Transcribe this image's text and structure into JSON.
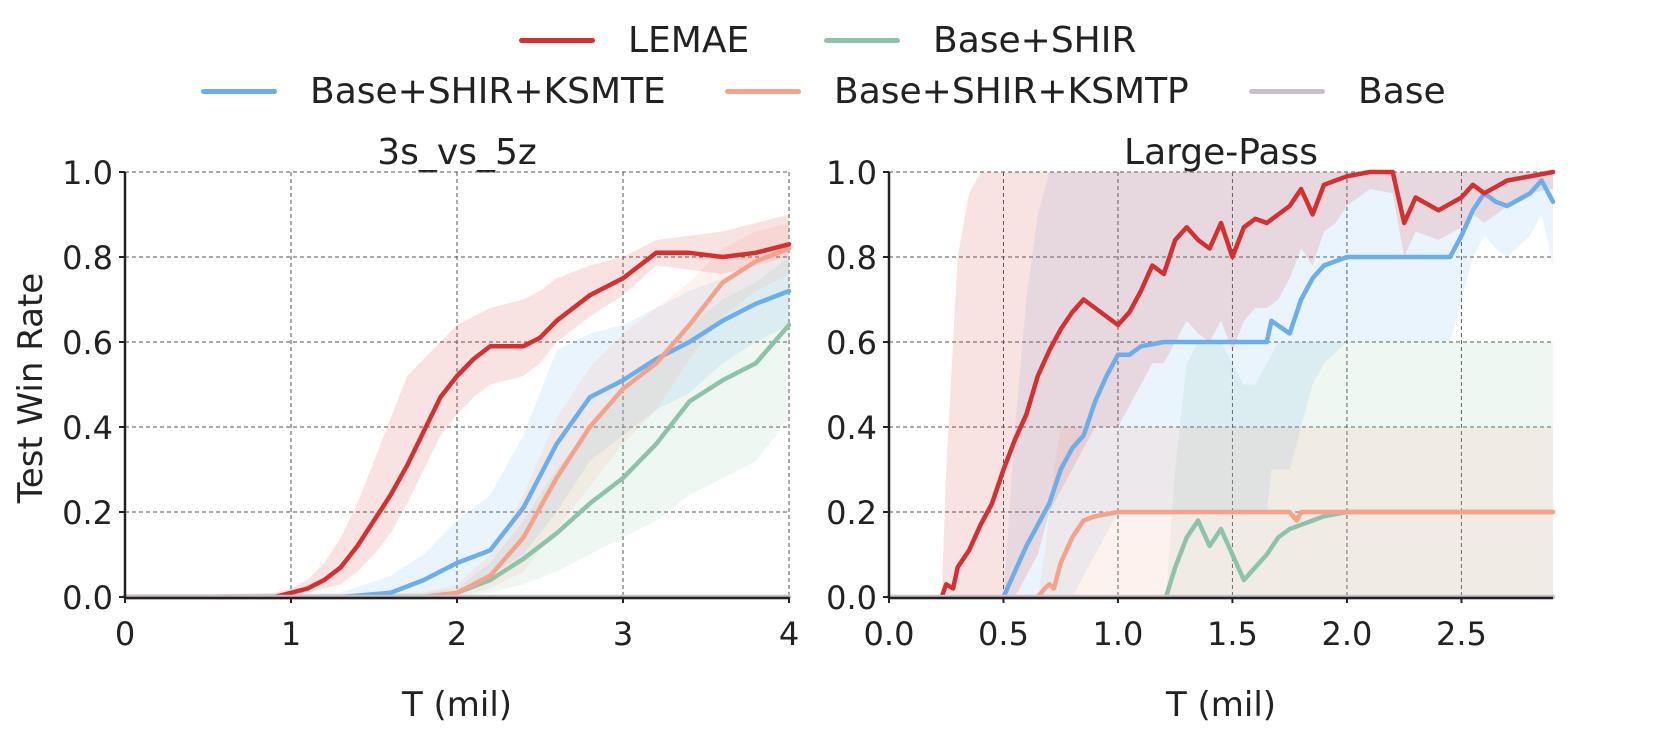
{
  "legend": {
    "items": [
      {
        "label": "LEMAE",
        "color": "#d62f2f"
      },
      {
        "label": "Base+SHIR",
        "color": "#8dc4a9"
      },
      {
        "label": "Base+SHIR+KSMTE",
        "color": "#6aaeec"
      },
      {
        "label": "Base+SHIR+KSMTP",
        "color": "#f6a28a"
      },
      {
        "label": "Base",
        "color": "#c8bfc8"
      }
    ]
  },
  "chart_data": [
    {
      "type": "line",
      "title": "3s_vs_5z",
      "xlabel": "T (mil)",
      "ylabel": "Test Win Rate",
      "xlim": [
        0,
        4
      ],
      "ylim": [
        0,
        1
      ],
      "xticks": [
        "0",
        "1",
        "2",
        "3",
        "4"
      ],
      "xtick_values": [
        0,
        1,
        2,
        3,
        4
      ],
      "yticks": [
        "0.0",
        "0.2",
        "0.4",
        "0.6",
        "0.8",
        "1.0"
      ],
      "grid": true,
      "series": [
        {
          "name": "Base+SHIR",
          "color": "#8dc4a9",
          "x": [
            0,
            1.8,
            2.0,
            2.2,
            2.4,
            2.6,
            2.8,
            3.0,
            3.2,
            3.4,
            3.6,
            3.8,
            4.0
          ],
          "y": [
            0,
            0,
            0.01,
            0.04,
            0.09,
            0.15,
            0.22,
            0.28,
            0.36,
            0.46,
            0.51,
            0.55,
            0.64
          ],
          "lower": [
            0,
            0,
            0,
            0.01,
            0.03,
            0.06,
            0.1,
            0.14,
            0.18,
            0.24,
            0.28,
            0.32,
            0.42
          ],
          "upper": [
            0,
            0.01,
            0.02,
            0.08,
            0.18,
            0.3,
            0.4,
            0.48,
            0.56,
            0.64,
            0.7,
            0.74,
            0.8
          ]
        },
        {
          "name": "Base+SHIR+KSMTE",
          "color": "#6aaeec",
          "x": [
            0,
            1.3,
            1.6,
            1.8,
            2.0,
            2.2,
            2.4,
            2.6,
            2.8,
            3.0,
            3.2,
            3.4,
            3.6,
            3.8,
            4.0
          ],
          "y": [
            0,
            0,
            0.01,
            0.04,
            0.08,
            0.11,
            0.21,
            0.36,
            0.47,
            0.51,
            0.56,
            0.6,
            0.65,
            0.69,
            0.72
          ],
          "lower": [
            0,
            0,
            0,
            0,
            0.02,
            0.05,
            0.1,
            0.2,
            0.32,
            0.38,
            0.44,
            0.48,
            0.55,
            0.6,
            0.64
          ],
          "upper": [
            0,
            0.01,
            0.05,
            0.1,
            0.18,
            0.24,
            0.38,
            0.58,
            0.62,
            0.64,
            0.68,
            0.72,
            0.75,
            0.78,
            0.8
          ]
        },
        {
          "name": "Base+SHIR+KSMTP",
          "color": "#f6a28a",
          "x": [
            0,
            1.8,
            2.0,
            2.2,
            2.4,
            2.6,
            2.8,
            3.0,
            3.2,
            3.4,
            3.6,
            3.8,
            4.0
          ],
          "y": [
            0,
            0,
            0.01,
            0.05,
            0.14,
            0.28,
            0.4,
            0.49,
            0.55,
            0.64,
            0.74,
            0.79,
            0.82
          ],
          "lower": [
            0,
            0,
            0,
            0.02,
            0.06,
            0.16,
            0.26,
            0.36,
            0.44,
            0.56,
            0.66,
            0.72,
            0.76
          ],
          "upper": [
            0,
            0.01,
            0.03,
            0.1,
            0.24,
            0.42,
            0.54,
            0.62,
            0.68,
            0.74,
            0.82,
            0.86,
            0.88
          ]
        },
        {
          "name": "LEMAE",
          "color": "#d62f2f",
          "x": [
            0,
            0.9,
            1.0,
            1.1,
            1.2,
            1.3,
            1.4,
            1.5,
            1.6,
            1.7,
            1.8,
            1.9,
            2.0,
            2.1,
            2.2,
            2.4,
            2.5,
            2.6,
            2.8,
            3.0,
            3.2,
            3.4,
            3.6,
            3.8,
            4.0
          ],
          "y": [
            0,
            0,
            0.01,
            0.02,
            0.04,
            0.07,
            0.12,
            0.18,
            0.24,
            0.31,
            0.39,
            0.47,
            0.52,
            0.56,
            0.59,
            0.59,
            0.61,
            0.65,
            0.71,
            0.75,
            0.81,
            0.81,
            0.8,
            0.81,
            0.83
          ],
          "lower": [
            0,
            0,
            0,
            0.01,
            0.02,
            0.03,
            0.06,
            0.1,
            0.15,
            0.22,
            0.3,
            0.38,
            0.43,
            0.47,
            0.5,
            0.52,
            0.55,
            0.6,
            0.66,
            0.71,
            0.78,
            0.77,
            0.76,
            0.78,
            0.8
          ],
          "upper": [
            0,
            0.01,
            0.02,
            0.04,
            0.08,
            0.14,
            0.22,
            0.32,
            0.42,
            0.52,
            0.56,
            0.6,
            0.64,
            0.66,
            0.68,
            0.7,
            0.72,
            0.75,
            0.78,
            0.8,
            0.84,
            0.85,
            0.86,
            0.88,
            0.9
          ]
        },
        {
          "name": "Base",
          "color": "#c8bfc8",
          "x": [
            0,
            4
          ],
          "y": [
            0,
            0
          ]
        }
      ]
    },
    {
      "type": "line",
      "title": "Large-Pass",
      "xlabel": "T (mil)",
      "ylabel": "",
      "xlim": [
        0,
        2.9
      ],
      "ylim": [
        0,
        1
      ],
      "xticks": [
        "0.0",
        "0.5",
        "1.0",
        "1.5",
        "2.0",
        "2.5"
      ],
      "xtick_values": [
        0,
        0.5,
        1.0,
        1.5,
        2.0,
        2.5
      ],
      "yticks": [
        "0.0",
        "0.2",
        "0.4",
        "0.6",
        "0.8",
        "1.0"
      ],
      "grid": true,
      "series": [
        {
          "name": "Base+SHIR",
          "color": "#8dc4a9",
          "x": [
            1.21,
            1.25,
            1.3,
            1.35,
            1.4,
            1.45,
            1.5,
            1.55,
            1.6,
            1.65,
            1.7,
            1.75,
            1.8,
            1.85,
            1.9,
            2.0,
            2.1,
            2.9
          ],
          "y": [
            0,
            0.07,
            0.14,
            0.18,
            0.12,
            0.16,
            0.1,
            0.04,
            0.07,
            0.1,
            0.14,
            0.16,
            0.17,
            0.18,
            0.19,
            0.2,
            0.2,
            0.2
          ],
          "lower": [
            0,
            0,
            0,
            0,
            0,
            0,
            0,
            0,
            0,
            0,
            0,
            0,
            0,
            0,
            0,
            0,
            0,
            0
          ],
          "upper": [
            0,
            0.3,
            0.55,
            0.6,
            0.6,
            0.6,
            0.55,
            0.5,
            0.5,
            0.55,
            0.6,
            0.6,
            0.6,
            0.6,
            0.6,
            0.6,
            0.6,
            0.6
          ]
        },
        {
          "name": "Base+SHIR+KSMTE",
          "color": "#6aaeec",
          "x": [
            0.5,
            0.55,
            0.6,
            0.65,
            0.7,
            0.75,
            0.8,
            0.85,
            0.9,
            0.95,
            1.0,
            1.05,
            1.1,
            1.2,
            1.3,
            1.4,
            1.5,
            1.65,
            1.67,
            1.75,
            1.8,
            1.85,
            1.9,
            2.0,
            2.2,
            2.45,
            2.5,
            2.55,
            2.6,
            2.65,
            2.7,
            2.8,
            2.85,
            2.9
          ],
          "y": [
            0,
            0.06,
            0.12,
            0.17,
            0.22,
            0.3,
            0.35,
            0.38,
            0.46,
            0.52,
            0.57,
            0.57,
            0.59,
            0.6,
            0.6,
            0.6,
            0.6,
            0.6,
            0.65,
            0.62,
            0.7,
            0.75,
            0.78,
            0.8,
            0.8,
            0.8,
            0.85,
            0.91,
            0.95,
            0.93,
            0.92,
            0.95,
            0.98,
            0.93
          ],
          "lower": [
            0,
            0,
            0,
            0,
            0,
            0,
            0,
            0.05,
            0.1,
            0.15,
            0.2,
            0.2,
            0.2,
            0.2,
            0.2,
            0.2,
            0.2,
            0.2,
            0.3,
            0.3,
            0.4,
            0.5,
            0.55,
            0.6,
            0.6,
            0.6,
            0.7,
            0.8,
            0.85,
            0.82,
            0.8,
            0.85,
            0.9,
            0.78
          ],
          "upper": [
            0,
            0.4,
            0.7,
            0.9,
            1.0,
            1.0,
            1.0,
            1.0,
            1.0,
            1.0,
            1.0,
            1.0,
            1.0,
            1.0,
            1.0,
            1.0,
            1.0,
            1.0,
            1.0,
            1.0,
            1.0,
            1.0,
            1.0,
            1.0,
            1.0,
            1.0,
            1.0,
            1.0,
            1.0,
            1.0,
            1.0,
            1.0,
            1.0,
            1.0
          ]
        },
        {
          "name": "Base+SHIR+KSMTP",
          "color": "#f6a28a",
          "x": [
            0.65,
            0.68,
            0.7,
            0.72,
            0.75,
            0.8,
            0.85,
            0.9,
            1.0,
            1.2,
            1.5,
            1.75,
            1.78,
            1.8,
            1.85,
            1.9,
            2.0,
            2.9
          ],
          "y": [
            0,
            0.02,
            0.03,
            0.02,
            0.08,
            0.14,
            0.18,
            0.19,
            0.2,
            0.2,
            0.2,
            0.2,
            0.18,
            0.2,
            0.2,
            0.2,
            0.2,
            0.2
          ],
          "lower": [
            0,
            0,
            0,
            0,
            0,
            0,
            0,
            0,
            0,
            0,
            0,
            0,
            0,
            0,
            0,
            0,
            0,
            0
          ],
          "upper": [
            0,
            0.1,
            0.2,
            0.3,
            0.4,
            0.4,
            0.4,
            0.4,
            0.4,
            0.4,
            0.4,
            0.4,
            0.4,
            0.4,
            0.4,
            0.4,
            0.4,
            0.4
          ]
        },
        {
          "name": "LEMAE",
          "color": "#d62f2f",
          "x": [
            0.23,
            0.25,
            0.28,
            0.3,
            0.35,
            0.4,
            0.45,
            0.5,
            0.55,
            0.6,
            0.65,
            0.7,
            0.75,
            0.8,
            0.85,
            0.9,
            0.95,
            1.0,
            1.05,
            1.1,
            1.15,
            1.2,
            1.25,
            1.3,
            1.35,
            1.4,
            1.45,
            1.5,
            1.55,
            1.6,
            1.65,
            1.7,
            1.75,
            1.8,
            1.85,
            1.9,
            1.95,
            2.0,
            2.1,
            2.2,
            2.25,
            2.3,
            2.4,
            2.5,
            2.55,
            2.6,
            2.7,
            2.8,
            2.9
          ],
          "y": [
            0,
            0.03,
            0.02,
            0.07,
            0.11,
            0.17,
            0.22,
            0.3,
            0.37,
            0.43,
            0.52,
            0.58,
            0.63,
            0.67,
            0.7,
            0.68,
            0.66,
            0.64,
            0.67,
            0.72,
            0.78,
            0.76,
            0.84,
            0.87,
            0.84,
            0.82,
            0.88,
            0.8,
            0.87,
            0.89,
            0.88,
            0.9,
            0.92,
            0.96,
            0.9,
            0.97,
            0.98,
            0.99,
            1.0,
            1.0,
            0.88,
            0.94,
            0.91,
            0.94,
            0.97,
            0.95,
            0.98,
            0.99,
            1.0
          ],
          "lower": [
            0,
            0,
            0,
            0,
            0,
            0,
            0,
            0,
            0,
            0.05,
            0.1,
            0.2,
            0.25,
            0.3,
            0.35,
            0.4,
            0.4,
            0.4,
            0.45,
            0.5,
            0.55,
            0.55,
            0.6,
            0.65,
            0.62,
            0.6,
            0.65,
            0.58,
            0.65,
            0.68,
            0.68,
            0.7,
            0.75,
            0.82,
            0.78,
            0.86,
            0.88,
            0.92,
            0.96,
            0.95,
            0.8,
            0.86,
            0.84,
            0.87,
            0.9,
            0.88,
            0.92,
            0.95,
            0.96
          ],
          "upper": [
            0,
            0.3,
            0.6,
            0.8,
            0.95,
            1.0,
            1.0,
            1.0,
            1.0,
            1.0,
            1.0,
            1.0,
            1.0,
            1.0,
            1.0,
            1.0,
            1.0,
            1.0,
            1.0,
            1.0,
            1.0,
            1.0,
            1.0,
            1.0,
            1.0,
            1.0,
            1.0,
            1.0,
            1.0,
            1.0,
            1.0,
            1.0,
            1.0,
            1.0,
            1.0,
            1.0,
            1.0,
            1.0,
            1.0,
            1.0,
            1.0,
            1.0,
            1.0,
            1.0,
            1.0,
            1.0,
            1.0,
            1.0,
            1.0
          ]
        },
        {
          "name": "Base",
          "color": "#c8bfc8",
          "x": [
            0,
            2.9
          ],
          "y": [
            0,
            0
          ]
        }
      ]
    }
  ]
}
